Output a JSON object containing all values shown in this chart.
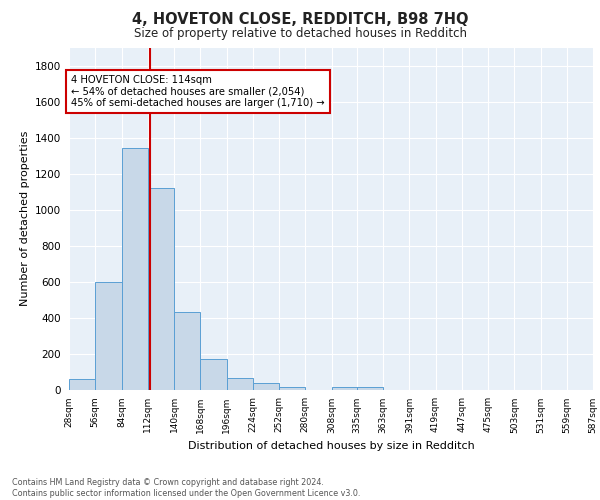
{
  "title1": "4, HOVETON CLOSE, REDDITCH, B98 7HQ",
  "title2": "Size of property relative to detached houses in Redditch",
  "xlabel": "Distribution of detached houses by size in Redditch",
  "ylabel": "Number of detached properties",
  "bar_left_edges": [
    28,
    56,
    84,
    112,
    140,
    168,
    196,
    224,
    252,
    280,
    308,
    335,
    363,
    391,
    419,
    447,
    475,
    503,
    531,
    559
  ],
  "bar_heights": [
    60,
    600,
    1340,
    1120,
    430,
    170,
    65,
    40,
    18,
    0,
    18,
    18,
    0,
    0,
    0,
    0,
    0,
    0,
    0,
    0
  ],
  "bin_width": 28,
  "bar_color": "#c8d8e8",
  "bar_edge_color": "#5a9fd4",
  "vline_x": 114,
  "vline_color": "#cc0000",
  "annotation_text": "4 HOVETON CLOSE: 114sqm\n← 54% of detached houses are smaller (2,054)\n45% of semi-detached houses are larger (1,710) →",
  "annotation_box_color": "#ffffff",
  "annotation_box_edge_color": "#cc0000",
  "tick_labels": [
    "28sqm",
    "56sqm",
    "84sqm",
    "112sqm",
    "140sqm",
    "168sqm",
    "196sqm",
    "224sqm",
    "252sqm",
    "280sqm",
    "308sqm",
    "335sqm",
    "363sqm",
    "391sqm",
    "419sqm",
    "447sqm",
    "475sqm",
    "503sqm",
    "531sqm",
    "559sqm",
    "587sqm"
  ],
  "ylim": [
    0,
    1900
  ],
  "background_color": "#e8f0f8",
  "grid_color": "#ffffff",
  "fig_background": "#ffffff",
  "footer_line1": "Contains HM Land Registry data © Crown copyright and database right 2024.",
  "footer_line2": "Contains public sector information licensed under the Open Government Licence v3.0."
}
